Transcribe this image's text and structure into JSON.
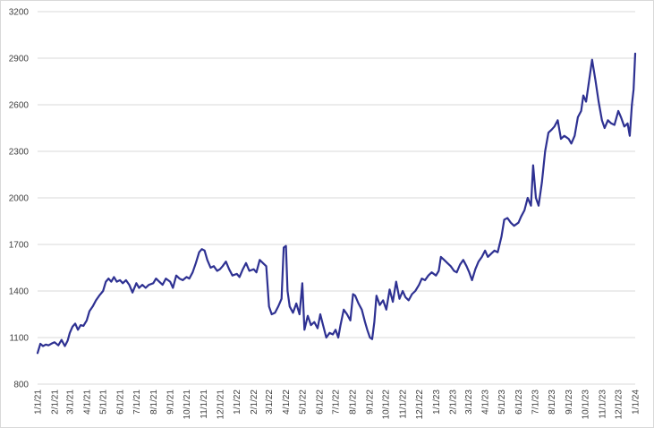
{
  "chart_data": {
    "type": "line",
    "title": "",
    "xlabel": "",
    "ylabel": "",
    "ylim": [
      800,
      3200
    ],
    "y_ticks": [
      800,
      1100,
      1400,
      1700,
      2000,
      2300,
      2600,
      2900,
      3200
    ],
    "x_ticks": [
      "1/1/21",
      "2/1/21",
      "3/1/21",
      "4/1/21",
      "5/1/21",
      "6/1/21",
      "7/1/21",
      "8/1/21",
      "9/1/21",
      "10/1/21",
      "11/1/21",
      "12/1/21",
      "1/1/22",
      "2/1/22",
      "3/1/22",
      "4/1/22",
      "5/1/22",
      "6/1/22",
      "7/1/22",
      "8/1/22",
      "9/1/22",
      "10/1/22",
      "11/1/22",
      "12/1/22",
      "1/1/23",
      "2/1/23",
      "3/1/23",
      "4/1/23",
      "5/1/23",
      "6/1/23",
      "7/1/23",
      "8/1/23",
      "9/1/23",
      "10/1/23",
      "11/1/23",
      "12/1/23",
      "1/1/24"
    ],
    "grid": true,
    "legend": "none",
    "series": [
      {
        "color": "#2e3192",
        "points": [
          [
            "2021-01-01",
            1000
          ],
          [
            "2021-01-06",
            1060
          ],
          [
            "2021-01-11",
            1045
          ],
          [
            "2021-01-16",
            1055
          ],
          [
            "2021-01-21",
            1050
          ],
          [
            "2021-01-26",
            1060
          ],
          [
            "2021-02-01",
            1070
          ],
          [
            "2021-02-08",
            1050
          ],
          [
            "2021-02-14",
            1085
          ],
          [
            "2021-02-20",
            1045
          ],
          [
            "2021-02-25",
            1080
          ],
          [
            "2021-03-01",
            1130
          ],
          [
            "2021-03-06",
            1170
          ],
          [
            "2021-03-11",
            1190
          ],
          [
            "2021-03-16",
            1150
          ],
          [
            "2021-03-21",
            1180
          ],
          [
            "2021-03-26",
            1175
          ],
          [
            "2021-04-01",
            1210
          ],
          [
            "2021-04-06",
            1270
          ],
          [
            "2021-04-12",
            1300
          ],
          [
            "2021-04-18",
            1340
          ],
          [
            "2021-04-24",
            1370
          ],
          [
            "2021-05-01",
            1400
          ],
          [
            "2021-05-06",
            1460
          ],
          [
            "2021-05-11",
            1480
          ],
          [
            "2021-05-16",
            1460
          ],
          [
            "2021-05-21",
            1490
          ],
          [
            "2021-05-26",
            1460
          ],
          [
            "2021-06-01",
            1470
          ],
          [
            "2021-06-06",
            1450
          ],
          [
            "2021-06-12",
            1470
          ],
          [
            "2021-06-18",
            1440
          ],
          [
            "2021-06-24",
            1390
          ],
          [
            "2021-07-01",
            1450
          ],
          [
            "2021-07-06",
            1420
          ],
          [
            "2021-07-12",
            1440
          ],
          [
            "2021-07-18",
            1420
          ],
          [
            "2021-07-24",
            1440
          ],
          [
            "2021-08-01",
            1450
          ],
          [
            "2021-08-06",
            1480
          ],
          [
            "2021-08-12",
            1460
          ],
          [
            "2021-08-18",
            1440
          ],
          [
            "2021-08-24",
            1480
          ],
          [
            "2021-09-01",
            1460
          ],
          [
            "2021-09-06",
            1420
          ],
          [
            "2021-09-12",
            1500
          ],
          [
            "2021-09-18",
            1480
          ],
          [
            "2021-09-24",
            1470
          ],
          [
            "2021-10-01",
            1490
          ],
          [
            "2021-10-06",
            1480
          ],
          [
            "2021-10-12",
            1520
          ],
          [
            "2021-10-18",
            1580
          ],
          [
            "2021-10-24",
            1650
          ],
          [
            "2021-10-29",
            1670
          ],
          [
            "2021-11-03",
            1660
          ],
          [
            "2021-11-08",
            1600
          ],
          [
            "2021-11-14",
            1550
          ],
          [
            "2021-11-20",
            1560
          ],
          [
            "2021-11-26",
            1530
          ],
          [
            "2021-12-01",
            1540
          ],
          [
            "2021-12-06",
            1560
          ],
          [
            "2021-12-12",
            1590
          ],
          [
            "2021-12-18",
            1540
          ],
          [
            "2021-12-24",
            1500
          ],
          [
            "2022-01-01",
            1510
          ],
          [
            "2022-01-06",
            1490
          ],
          [
            "2022-01-12",
            1540
          ],
          [
            "2022-01-18",
            1580
          ],
          [
            "2022-01-24",
            1530
          ],
          [
            "2022-02-01",
            1540
          ],
          [
            "2022-02-06",
            1520
          ],
          [
            "2022-02-12",
            1600
          ],
          [
            "2022-02-18",
            1580
          ],
          [
            "2022-02-24",
            1560
          ],
          [
            "2022-03-01",
            1300
          ],
          [
            "2022-03-06",
            1250
          ],
          [
            "2022-03-12",
            1260
          ],
          [
            "2022-03-18",
            1300
          ],
          [
            "2022-03-24",
            1350
          ],
          [
            "2022-03-28",
            1680
          ],
          [
            "2022-04-01",
            1690
          ],
          [
            "2022-04-04",
            1400
          ],
          [
            "2022-04-08",
            1300
          ],
          [
            "2022-04-14",
            1260
          ],
          [
            "2022-04-20",
            1320
          ],
          [
            "2022-04-26",
            1250
          ],
          [
            "2022-05-01",
            1450
          ],
          [
            "2022-05-05",
            1150
          ],
          [
            "2022-05-11",
            1240
          ],
          [
            "2022-05-17",
            1180
          ],
          [
            "2022-05-23",
            1200
          ],
          [
            "2022-05-29",
            1160
          ],
          [
            "2022-06-03",
            1250
          ],
          [
            "2022-06-08",
            1180
          ],
          [
            "2022-06-14",
            1100
          ],
          [
            "2022-06-20",
            1130
          ],
          [
            "2022-06-26",
            1120
          ],
          [
            "2022-07-01",
            1150
          ],
          [
            "2022-07-06",
            1100
          ],
          [
            "2022-07-10",
            1180
          ],
          [
            "2022-07-16",
            1280
          ],
          [
            "2022-07-22",
            1250
          ],
          [
            "2022-07-28",
            1210
          ],
          [
            "2022-08-02",
            1380
          ],
          [
            "2022-08-06",
            1370
          ],
          [
            "2022-08-12",
            1320
          ],
          [
            "2022-08-18",
            1280
          ],
          [
            "2022-08-24",
            1200
          ],
          [
            "2022-08-28",
            1150
          ],
          [
            "2022-09-02",
            1100
          ],
          [
            "2022-09-06",
            1090
          ],
          [
            "2022-09-10",
            1200
          ],
          [
            "2022-09-14",
            1370
          ],
          [
            "2022-09-20",
            1310
          ],
          [
            "2022-09-26",
            1340
          ],
          [
            "2022-10-02",
            1280
          ],
          [
            "2022-10-08",
            1410
          ],
          [
            "2022-10-14",
            1330
          ],
          [
            "2022-10-20",
            1460
          ],
          [
            "2022-10-26",
            1350
          ],
          [
            "2022-11-01",
            1400
          ],
          [
            "2022-11-06",
            1360
          ],
          [
            "2022-11-12",
            1340
          ],
          [
            "2022-11-18",
            1380
          ],
          [
            "2022-11-24",
            1400
          ],
          [
            "2022-12-01",
            1440
          ],
          [
            "2022-12-06",
            1480
          ],
          [
            "2022-12-12",
            1470
          ],
          [
            "2022-12-18",
            1500
          ],
          [
            "2022-12-24",
            1520
          ],
          [
            "2023-01-01",
            1500
          ],
          [
            "2023-01-06",
            1530
          ],
          [
            "2023-01-10",
            1620
          ],
          [
            "2023-01-16",
            1600
          ],
          [
            "2023-01-22",
            1580
          ],
          [
            "2023-01-28",
            1560
          ],
          [
            "2023-02-03",
            1530
          ],
          [
            "2023-02-08",
            1520
          ],
          [
            "2023-02-14",
            1570
          ],
          [
            "2023-02-20",
            1600
          ],
          [
            "2023-02-26",
            1560
          ],
          [
            "2023-03-03",
            1520
          ],
          [
            "2023-03-08",
            1470
          ],
          [
            "2023-03-14",
            1540
          ],
          [
            "2023-03-20",
            1590
          ],
          [
            "2023-03-26",
            1620
          ],
          [
            "2023-04-01",
            1660
          ],
          [
            "2023-04-06",
            1620
          ],
          [
            "2023-04-12",
            1640
          ],
          [
            "2023-04-18",
            1660
          ],
          [
            "2023-04-24",
            1650
          ],
          [
            "2023-05-01",
            1750
          ],
          [
            "2023-05-06",
            1860
          ],
          [
            "2023-05-12",
            1870
          ],
          [
            "2023-05-18",
            1840
          ],
          [
            "2023-05-24",
            1820
          ],
          [
            "2023-06-01",
            1840
          ],
          [
            "2023-06-06",
            1880
          ],
          [
            "2023-06-12",
            1920
          ],
          [
            "2023-06-18",
            2000
          ],
          [
            "2023-06-24",
            1950
          ],
          [
            "2023-06-28",
            2210
          ],
          [
            "2023-07-03",
            2000
          ],
          [
            "2023-07-08",
            1950
          ],
          [
            "2023-07-14",
            2100
          ],
          [
            "2023-07-20",
            2300
          ],
          [
            "2023-07-26",
            2420
          ],
          [
            "2023-08-01",
            2440
          ],
          [
            "2023-08-06",
            2460
          ],
          [
            "2023-08-12",
            2500
          ],
          [
            "2023-08-18",
            2380
          ],
          [
            "2023-08-24",
            2400
          ],
          [
            "2023-09-01",
            2380
          ],
          [
            "2023-09-06",
            2350
          ],
          [
            "2023-09-12",
            2400
          ],
          [
            "2023-09-18",
            2520
          ],
          [
            "2023-09-24",
            2560
          ],
          [
            "2023-09-28",
            2660
          ],
          [
            "2023-10-03",
            2620
          ],
          [
            "2023-10-08",
            2740
          ],
          [
            "2023-10-14",
            2890
          ],
          [
            "2023-10-20",
            2760
          ],
          [
            "2023-10-26",
            2620
          ],
          [
            "2023-11-01",
            2500
          ],
          [
            "2023-11-06",
            2450
          ],
          [
            "2023-11-12",
            2500
          ],
          [
            "2023-11-18",
            2480
          ],
          [
            "2023-11-24",
            2470
          ],
          [
            "2023-12-01",
            2560
          ],
          [
            "2023-12-06",
            2520
          ],
          [
            "2023-12-12",
            2460
          ],
          [
            "2023-12-18",
            2480
          ],
          [
            "2023-12-22",
            2400
          ],
          [
            "2023-12-26",
            2600
          ],
          [
            "2023-12-29",
            2700
          ],
          [
            "2024-01-01",
            2930
          ]
        ]
      }
    ]
  }
}
